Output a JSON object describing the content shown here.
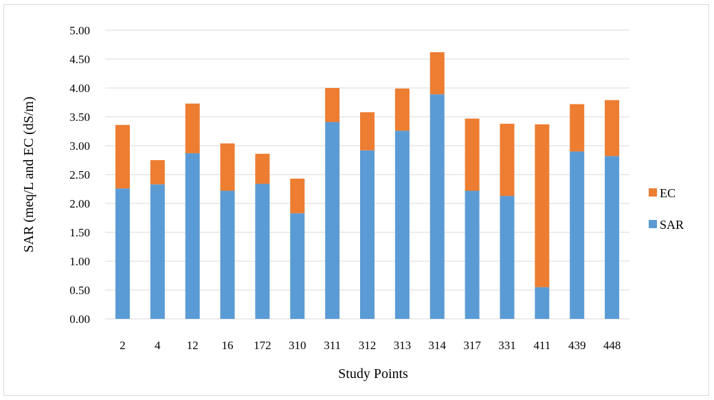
{
  "chart_data": {
    "type": "bar",
    "stacked": true,
    "title": "",
    "xlabel": "Study Points",
    "ylabel": "SAR (meq/L and EC (dS/m)",
    "ylim": [
      0,
      5
    ],
    "ytick_step": 0.5,
    "ytick_decimals": 2,
    "grid": true,
    "legend_position": "right",
    "categories": [
      "2",
      "4",
      "12",
      "16",
      "172",
      "310",
      "311",
      "312",
      "313",
      "314",
      "317",
      "331",
      "411",
      "439",
      "448"
    ],
    "series": [
      {
        "name": "SAR",
        "color": "#5b9bd5",
        "values": [
          2.26,
          2.33,
          2.87,
          2.22,
          2.34,
          1.83,
          3.41,
          2.92,
          3.26,
          3.89,
          2.22,
          2.13,
          0.55,
          2.9,
          2.82
        ]
      },
      {
        "name": "EC",
        "color": "#ed7d31",
        "values": [
          1.1,
          0.42,
          0.86,
          0.82,
          0.52,
          0.6,
          0.59,
          0.66,
          0.73,
          0.73,
          1.25,
          1.25,
          2.82,
          0.82,
          0.97
        ]
      }
    ],
    "legend_order": [
      "EC",
      "SAR"
    ]
  }
}
